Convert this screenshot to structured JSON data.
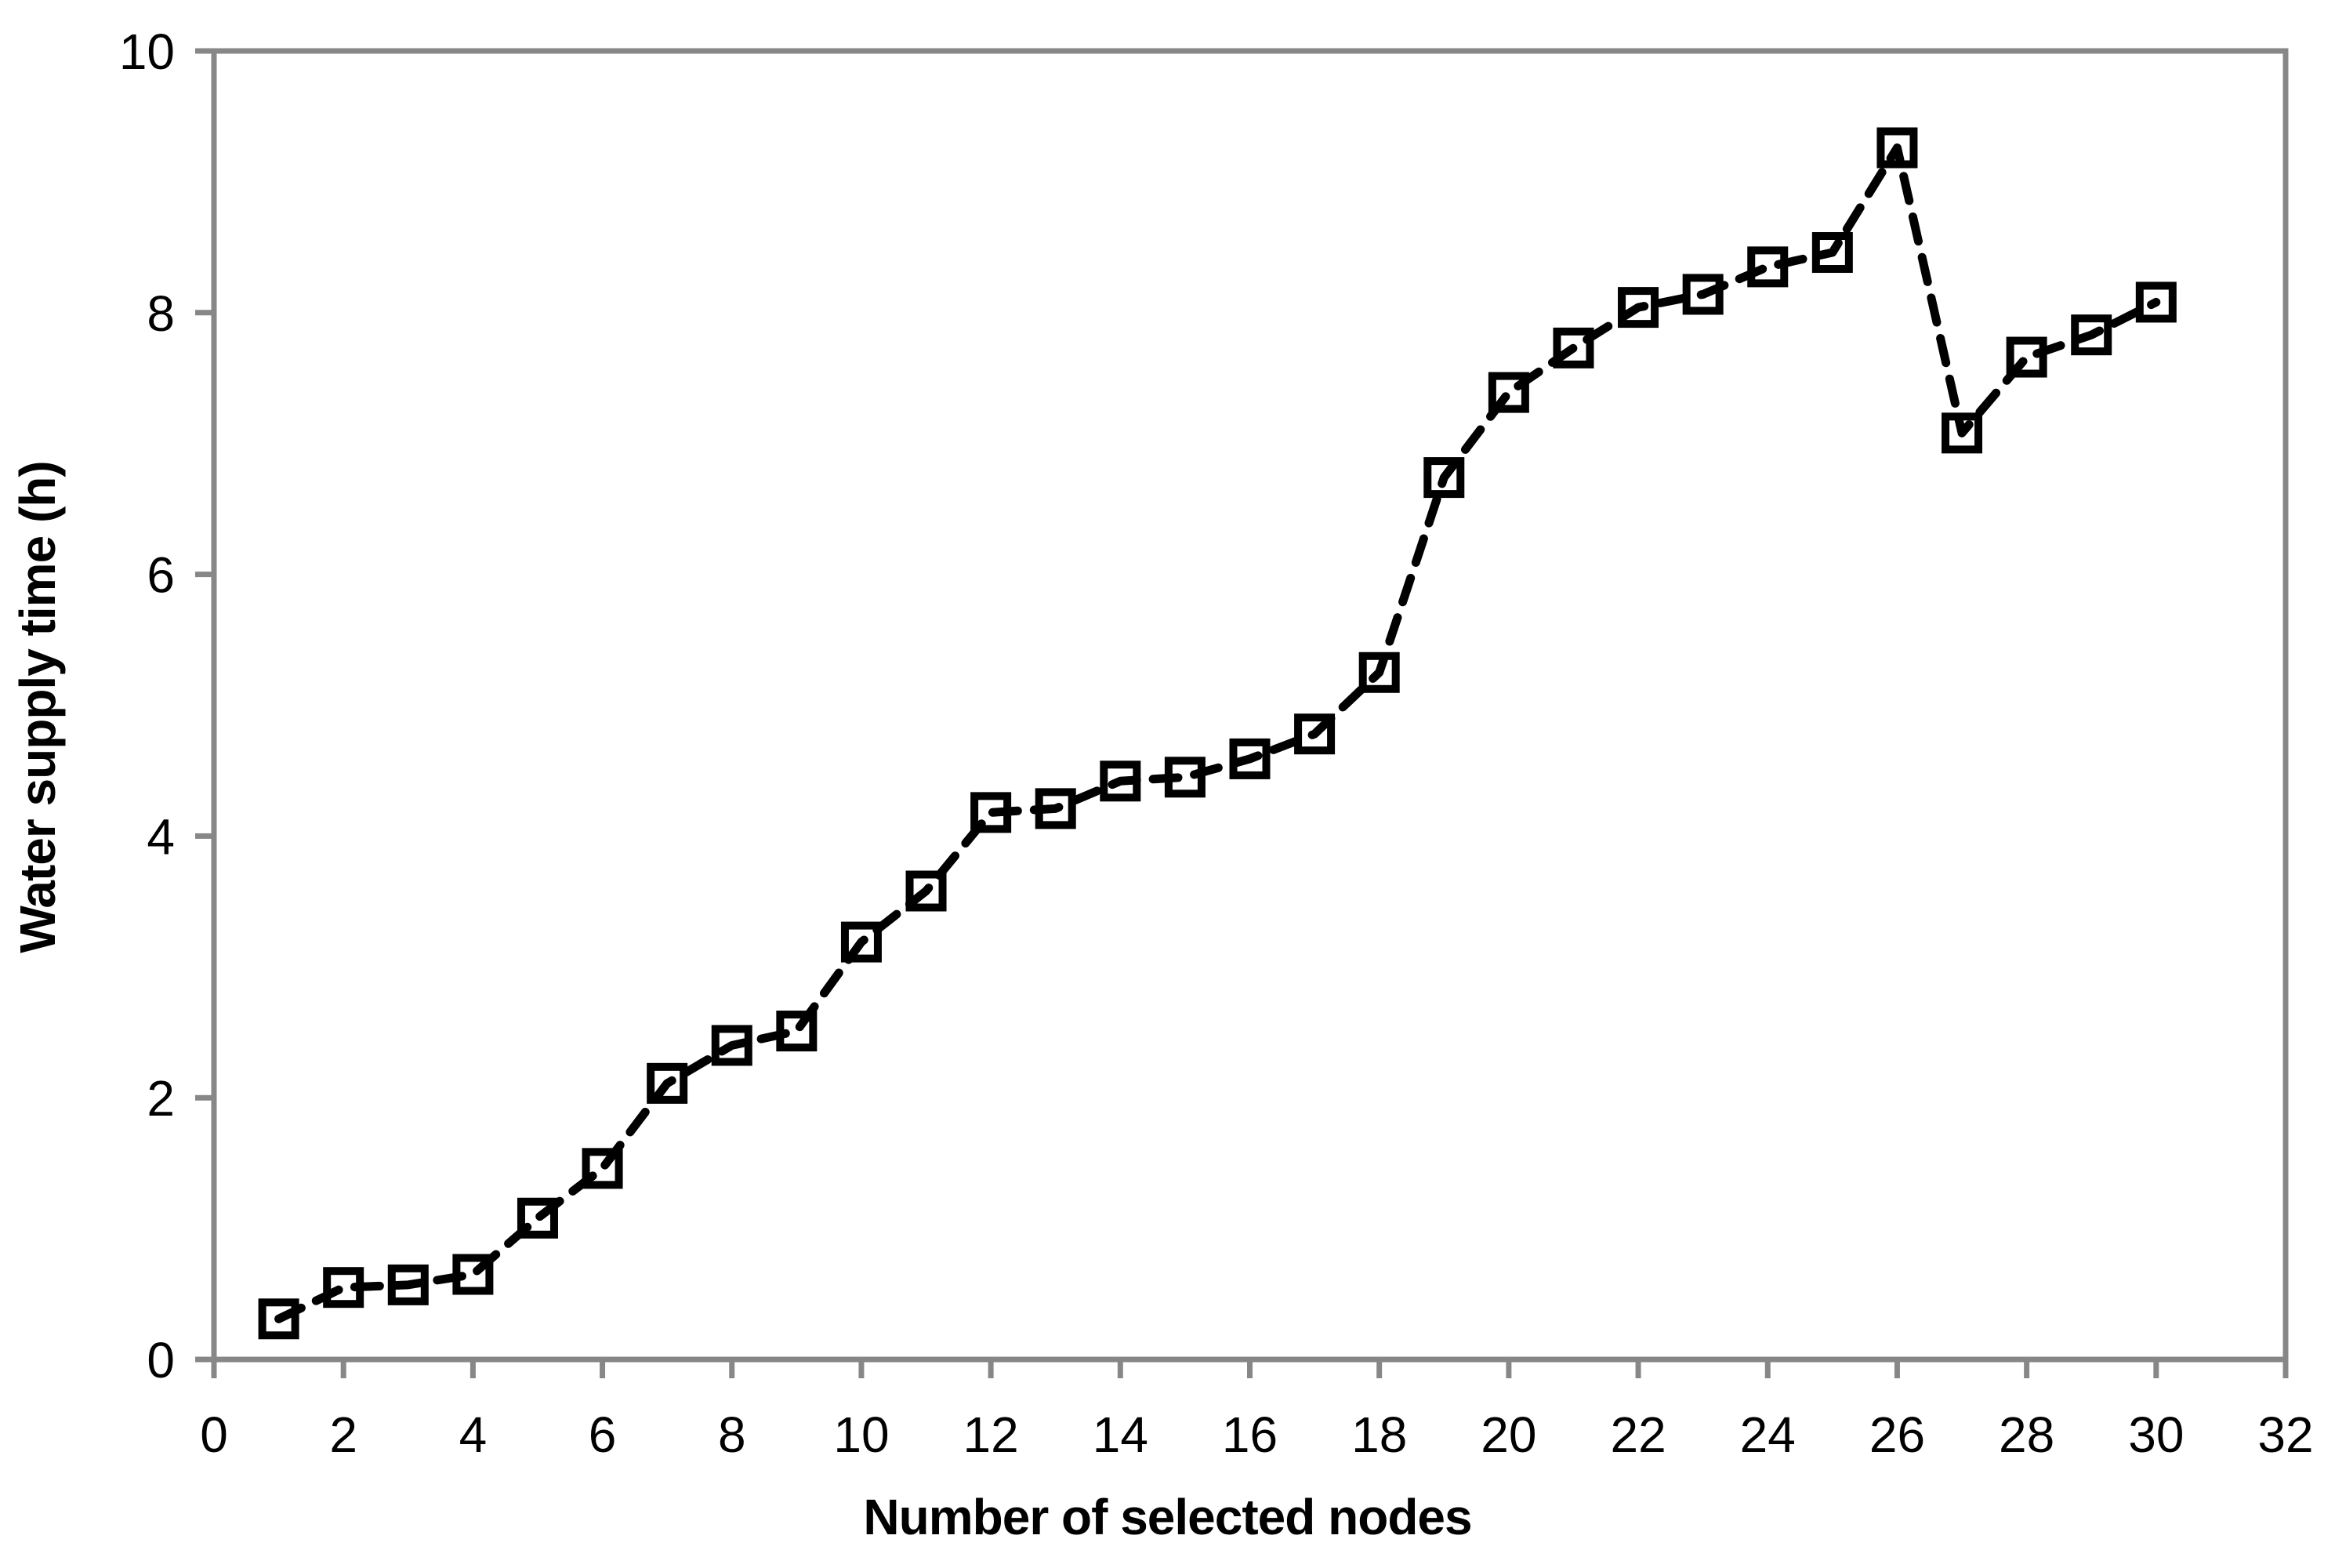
{
  "chart_data": {
    "type": "line",
    "title": "",
    "xlabel": "Number of selected nodes",
    "ylabel": "Water supply time (h)",
    "x": [
      1,
      2,
      3,
      4,
      5,
      6,
      7,
      8,
      9,
      10,
      11,
      12,
      13,
      14,
      15,
      16,
      17,
      18,
      19,
      20,
      21,
      22,
      23,
      24,
      25,
      26,
      27,
      28,
      29,
      30
    ],
    "y": [
      0.31,
      0.55,
      0.57,
      0.65,
      1.08,
      1.46,
      2.11,
      2.4,
      2.51,
      3.19,
      3.58,
      4.18,
      4.21,
      4.42,
      4.45,
      4.59,
      4.78,
      5.25,
      6.74,
      7.39,
      7.73,
      8.04,
      8.14,
      8.35,
      8.46,
      9.26,
      7.08,
      7.66,
      7.83,
      8.08
    ],
    "xlim": [
      0,
      32
    ],
    "ylim": [
      0,
      10
    ],
    "x_ticks": [
      0,
      2,
      4,
      6,
      8,
      10,
      12,
      14,
      16,
      18,
      20,
      22,
      24,
      26,
      28,
      30,
      32
    ],
    "y_ticks": [
      0,
      2,
      4,
      6,
      8,
      10
    ],
    "grid": false,
    "legend": false,
    "line_style": "dashed",
    "marker": "open-square",
    "series_color": "#000000",
    "axis_color": "#878787",
    "tick_label_color": "#000000"
  }
}
